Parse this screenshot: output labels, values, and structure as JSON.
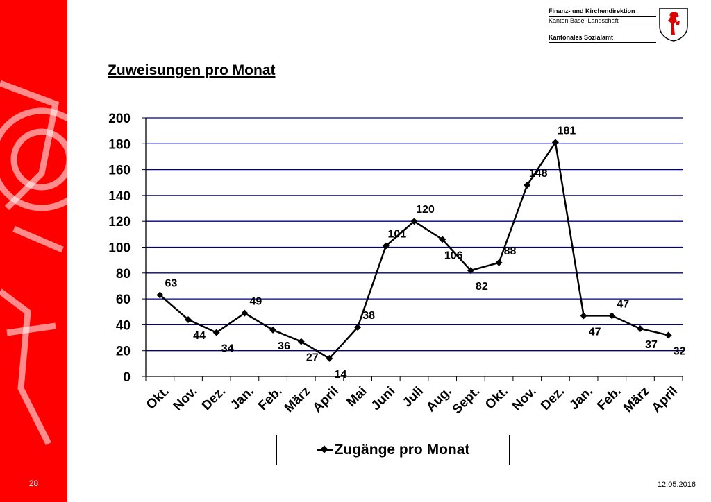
{
  "header": {
    "org_line1": "Finanz- und Kirchendirektion",
    "org_line2": "Kanton Basel-Landschaft",
    "org_line3": "Kantonales Sozialamt"
  },
  "slide": {
    "title": "Zuweisungen pro Monat",
    "page_number": "28",
    "date": "12.05.2016"
  },
  "colors": {
    "sidebar": "#ff0000",
    "grid": "#000080",
    "series": "#000000"
  },
  "chart_data": {
    "type": "line",
    "categories": [
      "Okt.",
      "Nov.",
      "Dez.",
      "Jan.",
      "Feb.",
      "März",
      "April",
      "Mai",
      "Juni",
      "Juli",
      "Aug.",
      "Sept.",
      "Okt.",
      "Nov.",
      "Dez.",
      "Jan.",
      "Feb.",
      "März",
      "April"
    ],
    "series": [
      {
        "name": "Zugänge pro Monat",
        "values": [
          63,
          44,
          34,
          49,
          36,
          27,
          14,
          38,
          101,
          120,
          106,
          82,
          88,
          148,
          181,
          47,
          47,
          37,
          32
        ],
        "marker": "diamond",
        "data_labels": true
      }
    ],
    "ylim": [
      0,
      200
    ],
    "yticks": [
      0,
      20,
      40,
      60,
      80,
      100,
      120,
      140,
      160,
      180,
      200
    ],
    "grid": "horizontal",
    "legend": "bottom",
    "title": "",
    "xlabel": "",
    "ylabel": ""
  }
}
